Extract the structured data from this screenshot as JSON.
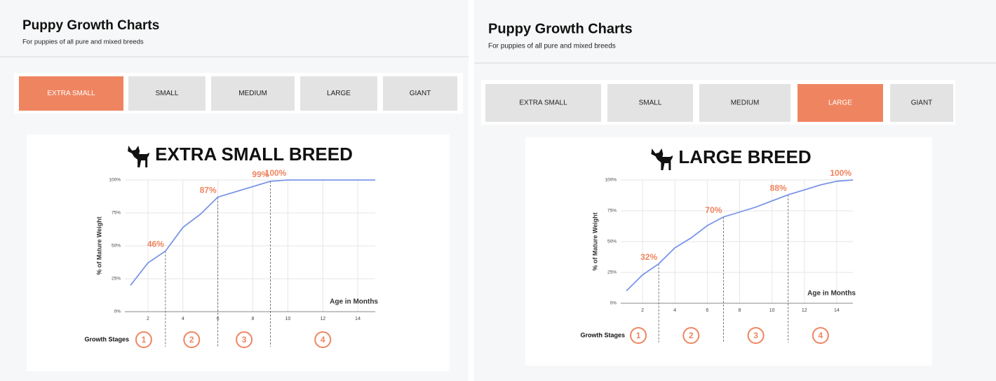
{
  "panels": [
    {
      "title": "Puppy Growth Charts",
      "subtitle": "For puppies of all pure and mixed breeds",
      "tabs": [
        "EXTRA SMALL",
        "SMALL",
        "MEDIUM",
        "LARGE",
        "GIANT"
      ],
      "active_tab": 0
    },
    {
      "title": "Puppy Growth Charts",
      "subtitle": "For puppies of all pure and mixed breeds",
      "tabs": [
        "EXTRA SMALL",
        "SMALL",
        "MEDIUM",
        "LARGE",
        "GIANT"
      ],
      "active_tab": 3
    }
  ],
  "chart_data": [
    {
      "type": "line",
      "title": "EXTRA SMALL BREED",
      "y_label": "% of Mature Weight",
      "x_label": "Age in Months",
      "x": [
        1,
        2,
        3,
        4,
        5,
        6,
        7,
        8,
        9,
        10,
        12,
        14,
        15
      ],
      "values": [
        20,
        37,
        46,
        64,
        74,
        87,
        91,
        95,
        99,
        100,
        100,
        100,
        100
      ],
      "color": "#7b96e8",
      "xlim": [
        1,
        15
      ],
      "xticks": [
        2,
        4,
        6,
        8,
        10,
        12,
        14
      ],
      "ylim": [
        0,
        100
      ],
      "yticks": [
        {
          "value": 0,
          "label": "0%"
        },
        {
          "value": 25,
          "label": "25%"
        },
        {
          "value": 50,
          "label": "50%"
        },
        {
          "value": 75,
          "label": "75%"
        },
        {
          "value": 100,
          "label": "100%"
        }
      ],
      "grid": true,
      "annotations": [
        {
          "x": 3,
          "value": 46,
          "label": "46%"
        },
        {
          "x": 6,
          "value": 87,
          "label": "87%"
        },
        {
          "x": 9,
          "value": 99,
          "label": "99%"
        },
        {
          "x": 10,
          "value": 100,
          "label": "100%"
        }
      ],
      "stage_label": "Growth Stages",
      "stage_bounds": [
        3,
        6,
        9
      ],
      "stages": [
        "1",
        "2",
        "3",
        "4"
      ]
    },
    {
      "type": "line",
      "title": "LARGE BREED",
      "y_label": "% of Mature Weight",
      "x_label": "Age in Months",
      "x": [
        1,
        2,
        3,
        4,
        5,
        6,
        7,
        8,
        9,
        10,
        11,
        12,
        13,
        14,
        15
      ],
      "values": [
        10,
        23,
        32,
        45,
        53,
        63,
        70,
        74,
        78,
        83,
        88,
        92,
        96,
        99,
        100
      ],
      "color": "#7b96e8",
      "xlim": [
        1,
        15
      ],
      "xticks": [
        2,
        4,
        6,
        8,
        10,
        12,
        14
      ],
      "ylim": [
        0,
        100
      ],
      "yticks": [
        {
          "value": 0,
          "label": "0%"
        },
        {
          "value": 25,
          "label": "25%"
        },
        {
          "value": 50,
          "label": "50%"
        },
        {
          "value": 75,
          "label": "75%"
        },
        {
          "value": 100,
          "label": "100%"
        }
      ],
      "grid": true,
      "annotations": [
        {
          "x": 3,
          "value": 32,
          "label": "32%"
        },
        {
          "x": 7,
          "value": 70,
          "label": "70%"
        },
        {
          "x": 11,
          "value": 88,
          "label": "88%"
        },
        {
          "x": 15,
          "value": 100,
          "label": "100%"
        }
      ],
      "stage_label": "Growth Stages",
      "stage_bounds": [
        3,
        7,
        11
      ],
      "stages": [
        "1",
        "2",
        "3",
        "4"
      ]
    }
  ]
}
